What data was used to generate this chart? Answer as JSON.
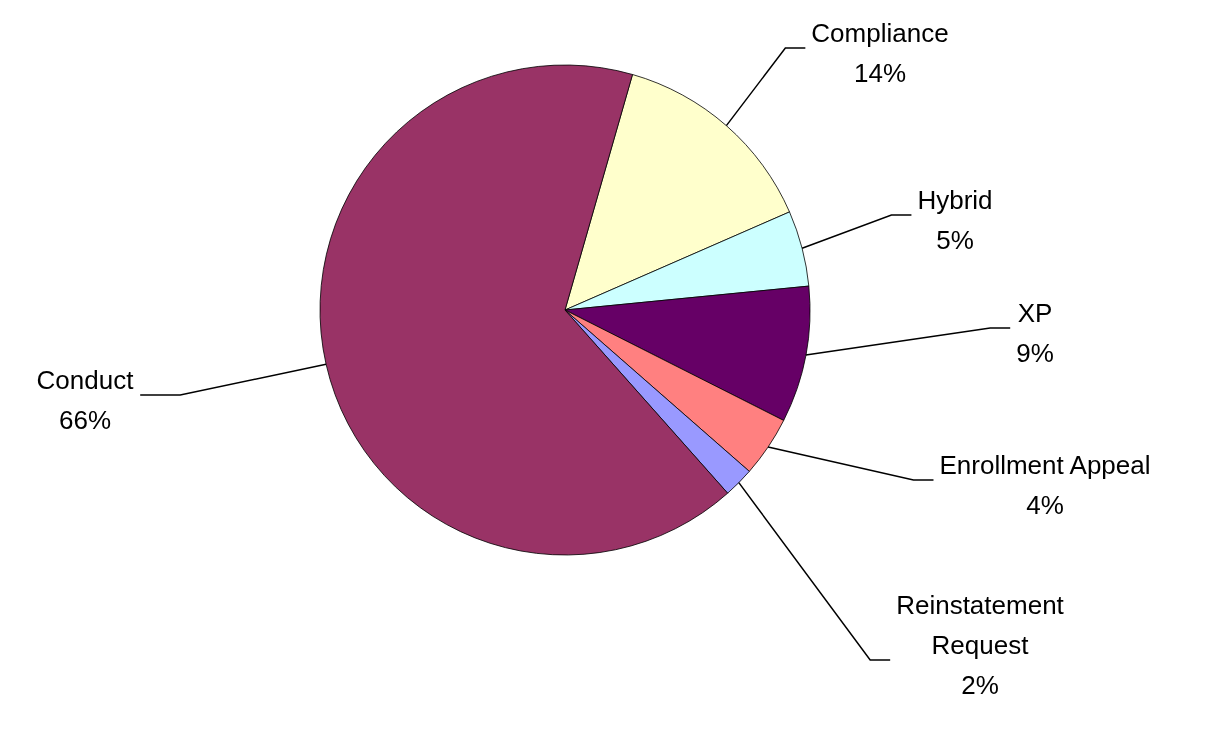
{
  "chart_data": {
    "type": "pie",
    "categories": [
      "Compliance",
      "Hybrid",
      "XP",
      "Enrollment Appeal",
      "Reinstatement Request",
      "Conduct"
    ],
    "values": [
      14,
      5,
      9,
      4,
      2,
      66
    ],
    "value_labels": [
      "14%",
      "5%",
      "9%",
      "4%",
      "2%",
      "66%"
    ],
    "colors": [
      "#ffffcc",
      "#ccffff",
      "#660066",
      "#ff8080",
      "#9999ff",
      "#993366"
    ],
    "legend": false
  }
}
